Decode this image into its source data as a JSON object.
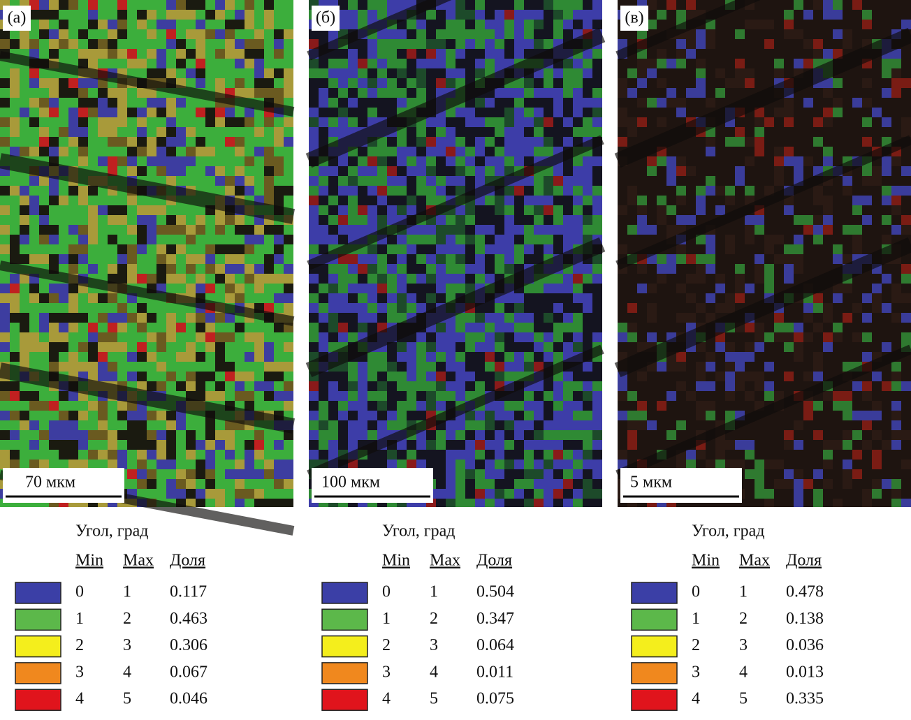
{
  "panels": [
    {
      "label": "(а)",
      "scale_bar": "70 мкм",
      "legend": {
        "title": "Угол, град",
        "columns": [
          "Min",
          "Max",
          "Доля"
        ],
        "rows": [
          [
            "0",
            "1",
            "0.117"
          ],
          [
            "1",
            "2",
            "0.463"
          ],
          [
            "2",
            "3",
            "0.306"
          ],
          [
            "3",
            "4",
            "0.067"
          ],
          [
            "4",
            "5",
            "0.046"
          ]
        ]
      }
    },
    {
      "label": "(б)",
      "scale_bar": "100 мкм",
      "legend": {
        "title": "Угол, град",
        "columns": [
          "Min",
          "Max",
          "Доля"
        ],
        "rows": [
          [
            "0",
            "1",
            "0.504"
          ],
          [
            "1",
            "2",
            "0.347"
          ],
          [
            "2",
            "3",
            "0.064"
          ],
          [
            "3",
            "4",
            "0.011"
          ],
          [
            "4",
            "5",
            "0.075"
          ]
        ]
      }
    },
    {
      "label": "(в)",
      "scale_bar": "5 мкм",
      "legend": {
        "title": "Угол, град",
        "columns": [
          "Min",
          "Max",
          "Доля"
        ],
        "rows": [
          [
            "0",
            "1",
            "0.478"
          ],
          [
            "1",
            "2",
            "0.138"
          ],
          [
            "2",
            "3",
            "0.036"
          ],
          [
            "3",
            "4",
            "0.013"
          ],
          [
            "4",
            "5",
            "0.335"
          ]
        ]
      }
    }
  ],
  "legend_colors": [
    "#3b3fa6",
    "#5cb84a",
    "#f4ee1c",
    "#f0881e",
    "#e0141c"
  ]
}
